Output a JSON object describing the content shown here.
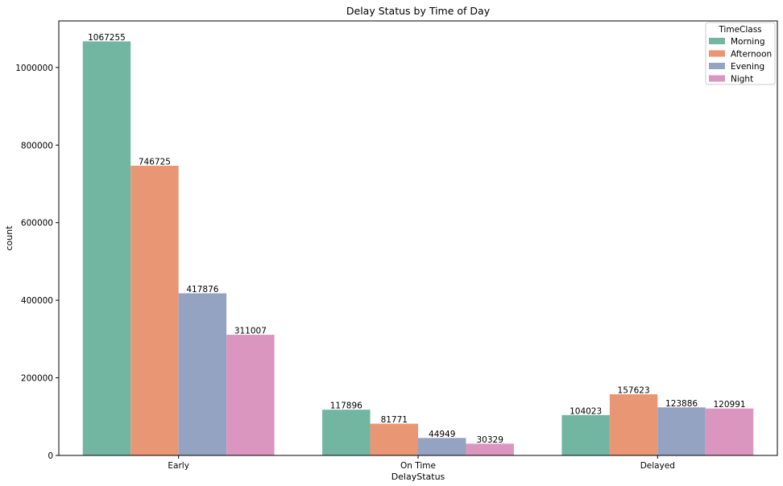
{
  "chart_data": {
    "type": "bar",
    "title": "Delay Status by Time of Day",
    "xlabel": "DelayStatus",
    "ylabel": "count",
    "categories": [
      "Early",
      "On Time",
      "Delayed"
    ],
    "ylim": [
      0,
      1120000
    ],
    "yticks": [
      0,
      200000,
      400000,
      600000,
      800000,
      1000000
    ],
    "ytick_labels": [
      "0",
      "200000",
      "400000",
      "600000",
      "800000",
      "1000000"
    ],
    "legend": {
      "title": "TimeClass",
      "placement": "top-right"
    },
    "grid": false,
    "series": [
      {
        "name": "Morning",
        "color": "#72b6a1",
        "values": [
          1067255,
          117896,
          104023
        ],
        "labels": [
          "1067255",
          "117896",
          "104023"
        ]
      },
      {
        "name": "Afternoon",
        "color": "#e99675",
        "values": [
          746725,
          81771,
          157623
        ],
        "labels": [
          "746725",
          "81771",
          "157623"
        ]
      },
      {
        "name": "Evening",
        "color": "#95a3c3",
        "values": [
          417876,
          44949,
          123886
        ],
        "labels": [
          "417876",
          "44949",
          "123886"
        ]
      },
      {
        "name": "Night",
        "color": "#db96c0",
        "values": [
          311007,
          30329,
          120991
        ],
        "labels": [
          "311007",
          "30329",
          "120991"
        ]
      }
    ]
  }
}
